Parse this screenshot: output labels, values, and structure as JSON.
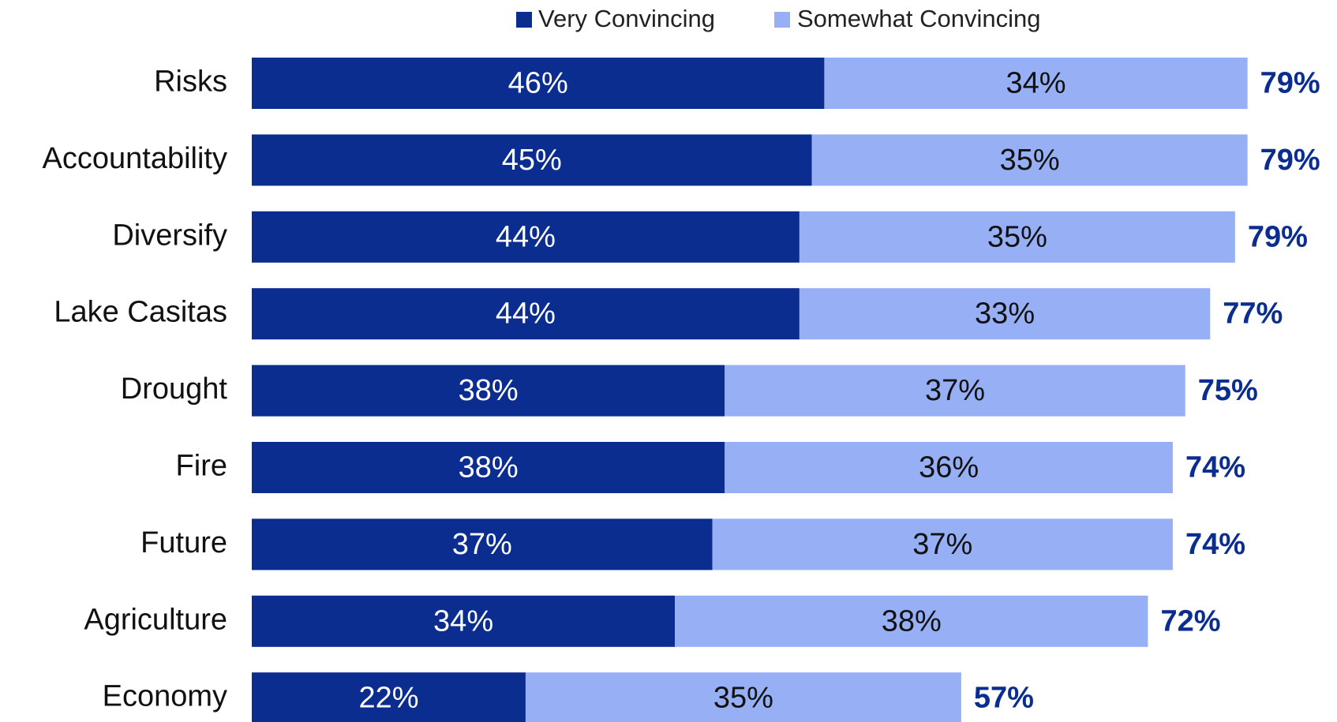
{
  "chart_data": {
    "type": "stacked_barh",
    "categories": [
      "Risks",
      "Accountability",
      "Diversify",
      "Lake Casitas",
      "Drought",
      "Fire",
      "Future",
      "Agriculture",
      "Economy"
    ],
    "series": [
      {
        "name": "Very Convincing",
        "color": "#0a2d8f",
        "label_color": "#ffffff",
        "values": [
          46,
          45,
          44,
          44,
          38,
          38,
          37,
          34,
          22
        ],
        "value_labels": [
          "46%",
          "45%",
          "44%",
          "44%",
          "38%",
          "38%",
          "37%",
          "34%",
          "22%"
        ]
      },
      {
        "name": "Somewhat Convincing",
        "color": "#97aff5",
        "label_color": "#111111",
        "values": [
          34,
          35,
          35,
          33,
          37,
          36,
          37,
          38,
          35
        ],
        "value_labels": [
          "34%",
          "35%",
          "35%",
          "33%",
          "37%",
          "36%",
          "37%",
          "38%",
          "35%"
        ]
      }
    ],
    "totals": {
      "color": "#0a2d8f",
      "values": [
        79,
        79,
        79,
        77,
        75,
        74,
        74,
        72,
        57
      ],
      "value_labels": [
        "79%",
        "79%",
        "79%",
        "77%",
        "75%",
        "74%",
        "74%",
        "72%",
        "57%"
      ]
    },
    "legend": "top"
  }
}
